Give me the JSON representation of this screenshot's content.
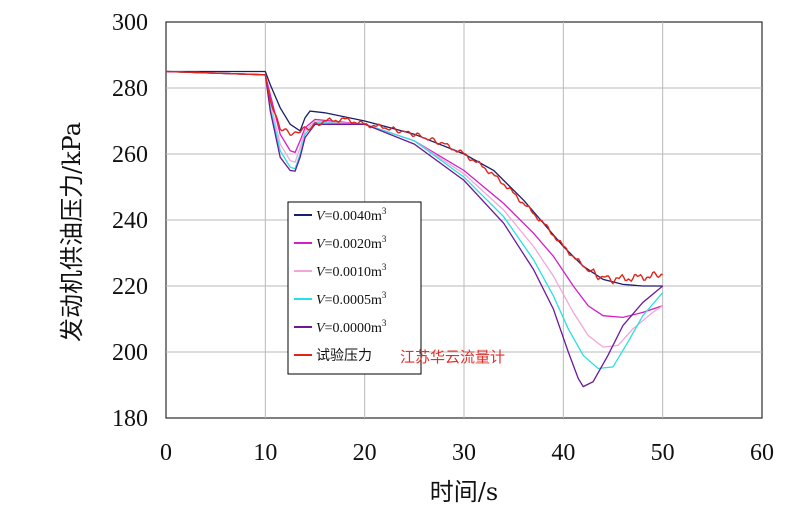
{
  "chart_data": {
    "type": "line",
    "title": "",
    "xlabel": "时间/s",
    "ylabel": "发动机供油压力/kPa",
    "xlim": [
      0,
      60
    ],
    "ylim": [
      180,
      300
    ],
    "xticks": [
      "0",
      "10",
      "20",
      "30",
      "40",
      "50",
      "60"
    ],
    "yticks": [
      "180",
      "200",
      "220",
      "240",
      "260",
      "280",
      "300"
    ],
    "grid": true,
    "legend_position": "center-left",
    "series": [
      {
        "name_prefix": "V",
        "name_value": "=0.0040m",
        "name_sup": "3",
        "color": "#1a1f6b",
        "points": [
          [
            0,
            285
          ],
          [
            10,
            285
          ],
          [
            10.5,
            281
          ],
          [
            11.5,
            274
          ],
          [
            12.5,
            269
          ],
          [
            13.5,
            267
          ],
          [
            14,
            271
          ],
          [
            14.5,
            273
          ],
          [
            16,
            272.5
          ],
          [
            20,
            270
          ],
          [
            25,
            266
          ],
          [
            30,
            260
          ],
          [
            33,
            255
          ],
          [
            36,
            246
          ],
          [
            38,
            239
          ],
          [
            40,
            232
          ],
          [
            42,
            226
          ],
          [
            44,
            222
          ],
          [
            46,
            220.5
          ],
          [
            48,
            220
          ],
          [
            50,
            220
          ]
        ]
      },
      {
        "name_prefix": "V",
        "name_value": "=0.0020m",
        "name_sup": "3",
        "color": "#d21fc8",
        "points": [
          [
            0,
            285
          ],
          [
            10,
            284
          ],
          [
            10.5,
            278
          ],
          [
            11.5,
            266
          ],
          [
            12.5,
            261
          ],
          [
            13,
            260.5
          ],
          [
            13.5,
            264
          ],
          [
            14,
            268
          ],
          [
            15,
            270.5
          ],
          [
            20,
            269
          ],
          [
            25,
            264
          ],
          [
            30,
            255
          ],
          [
            34,
            245
          ],
          [
            37,
            236
          ],
          [
            39,
            229
          ],
          [
            41,
            220
          ],
          [
            42.5,
            214
          ],
          [
            44,
            211
          ],
          [
            46,
            210.5
          ],
          [
            48,
            212
          ],
          [
            50,
            214
          ]
        ]
      },
      {
        "name_prefix": "V",
        "name_value": "=0.0010m",
        "name_sup": "3",
        "color": "#f2a7d8",
        "points": [
          [
            0,
            285
          ],
          [
            10,
            284
          ],
          [
            10.5,
            276
          ],
          [
            11.5,
            263
          ],
          [
            12.5,
            258
          ],
          [
            13,
            257.5
          ],
          [
            13.5,
            262
          ],
          [
            14,
            267
          ],
          [
            15,
            270
          ],
          [
            20,
            269
          ],
          [
            25,
            264
          ],
          [
            30,
            254
          ],
          [
            34,
            243
          ],
          [
            37,
            232
          ],
          [
            39,
            223
          ],
          [
            41,
            212
          ],
          [
            42.5,
            205
          ],
          [
            44,
            201.5
          ],
          [
            45.5,
            202
          ],
          [
            47,
            207
          ],
          [
            49,
            212
          ],
          [
            50,
            214
          ]
        ]
      },
      {
        "name_prefix": "V",
        "name_value": "=0.0005m",
        "name_sup": "3",
        "color": "#29e0e0",
        "points": [
          [
            0,
            285
          ],
          [
            10,
            284
          ],
          [
            10.5,
            274
          ],
          [
            11.5,
            261
          ],
          [
            12.5,
            256
          ],
          [
            13,
            255.5
          ],
          [
            13.5,
            260
          ],
          [
            14,
            266
          ],
          [
            15,
            269.5
          ],
          [
            20,
            269
          ],
          [
            25,
            264
          ],
          [
            30,
            253
          ],
          [
            34,
            241
          ],
          [
            37,
            228
          ],
          [
            39,
            217
          ],
          [
            40.5,
            207
          ],
          [
            42,
            199
          ],
          [
            43.5,
            195
          ],
          [
            45,
            195.5
          ],
          [
            46.5,
            203
          ],
          [
            48,
            211
          ],
          [
            50,
            218
          ]
        ]
      },
      {
        "name_prefix": "V",
        "name_value": "=0.0000m",
        "name_sup": "3",
        "color": "#6a1a9a",
        "points": [
          [
            0,
            285
          ],
          [
            10,
            284
          ],
          [
            10.5,
            273
          ],
          [
            11.5,
            259
          ],
          [
            12.5,
            255
          ],
          [
            13,
            254.8
          ],
          [
            13.5,
            259
          ],
          [
            14,
            265
          ],
          [
            15,
            269
          ],
          [
            20,
            269
          ],
          [
            25,
            263
          ],
          [
            30,
            252
          ],
          [
            34,
            239
          ],
          [
            37,
            225
          ],
          [
            39,
            213
          ],
          [
            40.5,
            200
          ],
          [
            41.5,
            192
          ],
          [
            42,
            189.5
          ],
          [
            43,
            191
          ],
          [
            44.5,
            199
          ],
          [
            46,
            208
          ],
          [
            48,
            215
          ],
          [
            50,
            220
          ]
        ]
      },
      {
        "name_prefix": "",
        "name_value": "试验压力",
        "name_sup": "",
        "color": "#e0241b",
        "noisy": true,
        "points": [
          [
            0,
            285
          ],
          [
            10,
            284
          ],
          [
            10.5,
            276
          ],
          [
            11.5,
            268
          ],
          [
            12.5,
            266
          ],
          [
            13.5,
            267
          ],
          [
            14.5,
            268
          ],
          [
            16,
            270
          ],
          [
            18,
            270.5
          ],
          [
            20,
            269
          ],
          [
            22,
            268
          ],
          [
            25,
            266
          ],
          [
            28,
            263
          ],
          [
            30,
            260
          ],
          [
            32,
            256
          ],
          [
            34,
            251
          ],
          [
            36,
            245
          ],
          [
            38,
            239
          ],
          [
            40,
            232
          ],
          [
            42,
            226
          ],
          [
            43.5,
            223
          ],
          [
            45,
            222
          ],
          [
            47,
            222.5
          ],
          [
            49,
            223
          ],
          [
            50,
            223.5
          ]
        ]
      }
    ],
    "watermark": "江苏华云流量计"
  }
}
